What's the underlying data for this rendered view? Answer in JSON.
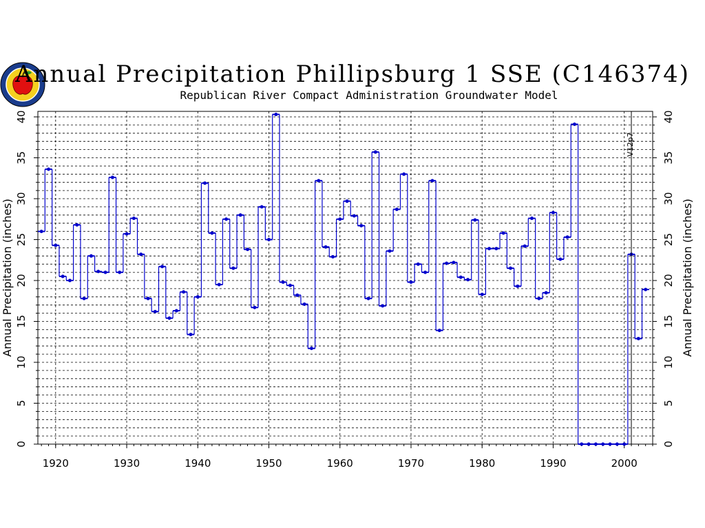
{
  "chart_data": {
    "type": "step-line",
    "title": "Annual Precipitation Phillipsburg 1 SSE (C146374)",
    "subtitle": "Republican River Compact Administration Groundwater Model",
    "ylabel": "Annual Precipitation (inches)",
    "ylabel_right": "Annual Precipitation (inches)",
    "xlabel": "",
    "xlim": [
      1917.5,
      2004
    ],
    "ylim": [
      0,
      40
    ],
    "x_ticks": [
      1920,
      1930,
      1940,
      1950,
      1960,
      1970,
      1980,
      1990,
      2000
    ],
    "y_ticks": [
      0,
      5,
      10,
      15,
      20,
      25,
      30,
      35,
      40
    ],
    "grid": true,
    "line_color": "#0000cc",
    "annotation": {
      "label": "V12p7",
      "x": 2001
    },
    "series": [
      {
        "x": [
          1918,
          1919,
          1920,
          1921,
          1922,
          1923,
          1924,
          1925,
          1926,
          1927,
          1928,
          1929,
          1930,
          1931,
          1932,
          1933,
          1934,
          1935,
          1936,
          1937,
          1938,
          1939,
          1940,
          1941,
          1942,
          1943,
          1944,
          1945,
          1946,
          1947,
          1948,
          1949,
          1950,
          1951,
          1952,
          1953,
          1954,
          1955,
          1956,
          1957,
          1958,
          1959,
          1960,
          1961,
          1962,
          1963,
          1964,
          1965,
          1966,
          1967,
          1968,
          1969,
          1970,
          1971,
          1972,
          1973,
          1974,
          1975,
          1976,
          1977,
          1978,
          1979,
          1980,
          1981,
          1982,
          1983,
          1984,
          1985,
          1986,
          1987,
          1988,
          1989,
          1990,
          1991,
          1992,
          1993,
          1994,
          1995,
          1996,
          1997,
          1998,
          1999,
          2000,
          2001,
          2002,
          2003
        ],
        "values": [
          26.0,
          33.6,
          24.3,
          20.5,
          20.0,
          26.8,
          17.8,
          23.0,
          21.1,
          21.0,
          32.6,
          21.0,
          25.7,
          27.6,
          23.2,
          17.8,
          16.2,
          21.7,
          15.4,
          16.3,
          18.6,
          13.4,
          18.0,
          31.9,
          25.8,
          19.5,
          27.5,
          21.5,
          28.0,
          23.8,
          16.7,
          29.0,
          25.0,
          40.3,
          19.8,
          19.4,
          18.2,
          17.1,
          11.7,
          32.2,
          24.1,
          22.9,
          27.5,
          29.7,
          27.9,
          26.7,
          17.8,
          35.7,
          16.9,
          23.6,
          28.7,
          33.0,
          19.8,
          22.0,
          21.0,
          32.2,
          13.9,
          22.1,
          22.2,
          20.4,
          20.1,
          27.4,
          18.3,
          23.9,
          23.9,
          25.8,
          21.5,
          19.3,
          24.2,
          27.6,
          17.8,
          18.5,
          28.3,
          22.6,
          25.3,
          39.1,
          0.0,
          0.0,
          0.0,
          0.0,
          0.0,
          0.0,
          0.0,
          23.2,
          12.9,
          18.9
        ]
      }
    ]
  }
}
